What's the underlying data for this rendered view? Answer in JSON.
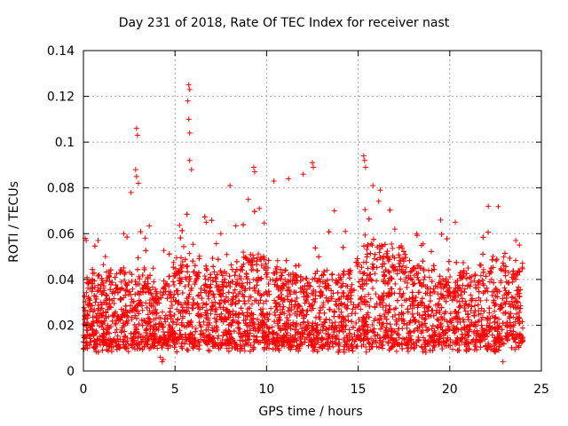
{
  "chart_data": {
    "type": "scatter",
    "title": "Day 231 of 2018, Rate Of TEC Index for receiver nast",
    "xlabel": "GPS time / hours",
    "ylabel": "ROTI / TECUs",
    "xlim": [
      0,
      25
    ],
    "ylim": [
      0,
      0.14
    ],
    "xticks": [
      "0",
      "5",
      "10",
      "15",
      "20",
      "25"
    ],
    "yticks": [
      "0",
      "0.02",
      "0.04",
      "0.06",
      "0.08",
      "0.1",
      "0.12",
      "0.14"
    ],
    "grid": true,
    "marker": "+",
    "series_color": "#ff0000",
    "points": [
      [
        5.75,
        0.125
      ],
      [
        5.8,
        0.123
      ],
      [
        5.7,
        0.118
      ],
      [
        5.75,
        0.11
      ],
      [
        5.8,
        0.104
      ],
      [
        2.9,
        0.106
      ],
      [
        2.95,
        0.103
      ],
      [
        2.85,
        0.088
      ],
      [
        2.9,
        0.085
      ],
      [
        3.0,
        0.082
      ],
      [
        9.3,
        0.089
      ],
      [
        9.35,
        0.087
      ],
      [
        12.5,
        0.091
      ],
      [
        12.55,
        0.089
      ],
      [
        15.3,
        0.094
      ],
      [
        15.35,
        0.092
      ],
      [
        15.4,
        0.089
      ],
      [
        5.8,
        0.092
      ],
      [
        5.9,
        0.088
      ],
      [
        2.6,
        0.078
      ],
      [
        8.0,
        0.081
      ],
      [
        10.4,
        0.083
      ],
      [
        11.2,
        0.084
      ],
      [
        12.0,
        0.086
      ],
      [
        15.8,
        0.081
      ],
      [
        16.2,
        0.079
      ],
      [
        22.1,
        0.072
      ],
      [
        20.3,
        0.065
      ],
      [
        19.5,
        0.066
      ],
      [
        0.1,
        0.058
      ],
      [
        0.15,
        0.057
      ],
      [
        0.8,
        0.057
      ],
      [
        4.2,
        0.006
      ],
      [
        4.3,
        0.004
      ],
      [
        4.35,
        0.005
      ],
      [
        22.9,
        0.004
      ],
      [
        1.2,
        0.05
      ],
      [
        2.2,
        0.06
      ],
      [
        6.7,
        0.065
      ],
      [
        7.5,
        0.06
      ],
      [
        13.7,
        0.07
      ],
      [
        14.3,
        0.061
      ],
      [
        17.0,
        0.062
      ],
      [
        18.2,
        0.06
      ],
      [
        21.0,
        0.045
      ],
      [
        23.6,
        0.057
      ],
      [
        23.8,
        0.055
      ],
      [
        3.5,
        0.041
      ],
      [
        9.0,
        0.075
      ],
      [
        9.6,
        0.071
      ]
    ]
  }
}
